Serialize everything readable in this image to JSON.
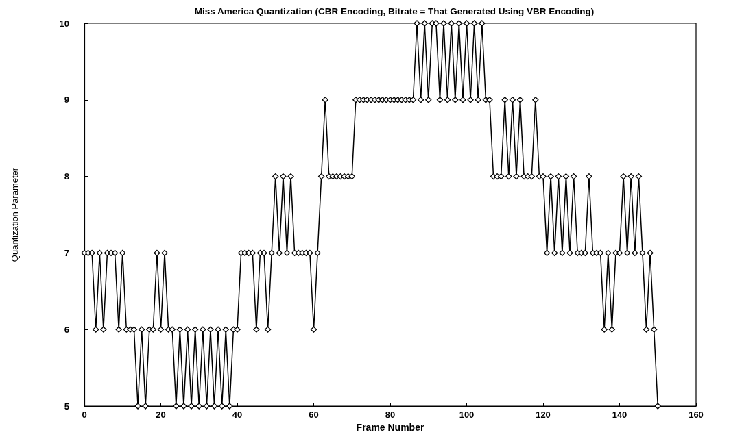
{
  "chart_data": {
    "type": "line",
    "title": "Miss America Quantization (CBR Encoding, Bitrate = That Generated Using VBR Encoding)",
    "xlabel": "Frame Number",
    "ylabel": "Quantization Parameter",
    "x": [
      0,
      1,
      2,
      3,
      4,
      5,
      6,
      7,
      8,
      9,
      10,
      11,
      12,
      13,
      14,
      15,
      16,
      17,
      18,
      19,
      20,
      21,
      22,
      23,
      24,
      25,
      26,
      27,
      28,
      29,
      30,
      31,
      32,
      33,
      34,
      35,
      36,
      37,
      38,
      39,
      40,
      41,
      42,
      43,
      44,
      45,
      46,
      47,
      48,
      49,
      50,
      51,
      52,
      53,
      54,
      55,
      56,
      57,
      58,
      59,
      60,
      61,
      62,
      63,
      64,
      65,
      66,
      67,
      68,
      69,
      70,
      71,
      72,
      73,
      74,
      75,
      76,
      77,
      78,
      79,
      80,
      81,
      82,
      83,
      84,
      85,
      86,
      87,
      88,
      89,
      90,
      91,
      92,
      93,
      94,
      95,
      96,
      97,
      98,
      99,
      100,
      101,
      102,
      103,
      104,
      105,
      106,
      107,
      108,
      109,
      110,
      111,
      112,
      113,
      114,
      115,
      116,
      117,
      118,
      119,
      120,
      121,
      122,
      123,
      124,
      125,
      126,
      127,
      128,
      129,
      130,
      131,
      132,
      133,
      134,
      135,
      136,
      137,
      138,
      139,
      140,
      141,
      142,
      143,
      144,
      145,
      146,
      147,
      148,
      149,
      150
    ],
    "series": [
      {
        "color": "#000000",
        "values": [
          7,
          7,
          7,
          6,
          7,
          6,
          7,
          7,
          7,
          6,
          7,
          6,
          6,
          6,
          5,
          6,
          5,
          6,
          6,
          7,
          6,
          7,
          6,
          6,
          5,
          6,
          5,
          6,
          5,
          6,
          5,
          6,
          5,
          6,
          5,
          6,
          5,
          6,
          5,
          6,
          6,
          7,
          7,
          7,
          7,
          6,
          7,
          7,
          6,
          7,
          8,
          7,
          8,
          7,
          8,
          7,
          7,
          7,
          7,
          7,
          6,
          7,
          8,
          9,
          8,
          8,
          8,
          8,
          8,
          8,
          8,
          9,
          9,
          9,
          9,
          9,
          9,
          9,
          9,
          9,
          9,
          9,
          9,
          9,
          9,
          9,
          9,
          10,
          9,
          10,
          9,
          10,
          10,
          9,
          10,
          9,
          10,
          9,
          10,
          9,
          10,
          9,
          10,
          9,
          10,
          9,
          9,
          8,
          8,
          8,
          9,
          8,
          9,
          8,
          9,
          8,
          8,
          8,
          9,
          8,
          8,
          7,
          8,
          7,
          8,
          7,
          8,
          7,
          8,
          7,
          7,
          7,
          8,
          7,
          7,
          7,
          6,
          7,
          6,
          7,
          7,
          8,
          7,
          8,
          7,
          8,
          7,
          6,
          7,
          6,
          5
        ]
      }
    ],
    "xlim": [
      0,
      160
    ],
    "xticks": [
      0,
      20,
      40,
      60,
      80,
      100,
      120,
      140,
      160
    ],
    "ylim": [
      5,
      10
    ],
    "yticks": [
      5,
      6,
      7,
      8,
      9,
      10
    ],
    "grid": false,
    "marker": "diamond",
    "line_style": "solid"
  }
}
